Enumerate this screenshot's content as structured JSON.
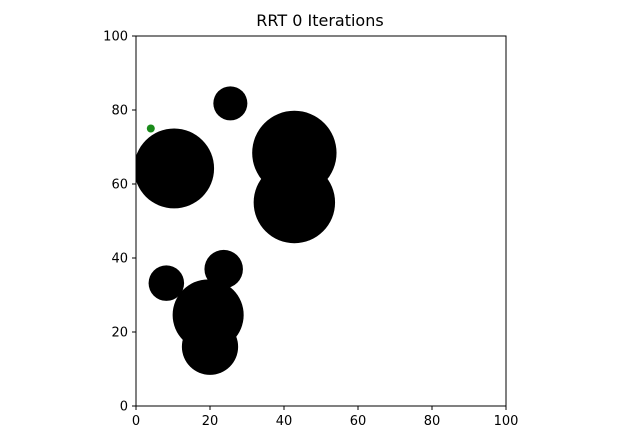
{
  "chart_data": {
    "type": "scatter",
    "title": "RRT 0 Iterations",
    "xlabel": "",
    "ylabel": "",
    "xlim": [
      0,
      100
    ],
    "ylim": [
      0,
      100
    ],
    "x_ticks": [
      "0",
      "20",
      "40",
      "60",
      "80",
      "100"
    ],
    "y_ticks": [
      "0",
      "20",
      "40",
      "60",
      "80",
      "100"
    ],
    "grid": false,
    "obstacles": [
      {
        "x": 25.5,
        "y": 81.8,
        "r": 4.6
      },
      {
        "x": 10.3,
        "y": 64.2,
        "r": 10.8
      },
      {
        "x": 42.8,
        "y": 68.4,
        "r": 11.4
      },
      {
        "x": 42.8,
        "y": 55.0,
        "r": 11.0
      },
      {
        "x": 23.7,
        "y": 37.0,
        "r": 5.2
      },
      {
        "x": 8.2,
        "y": 33.2,
        "r": 4.8
      },
      {
        "x": 19.5,
        "y": 24.6,
        "r": 9.6
      },
      {
        "x": 20.0,
        "y": 16.0,
        "r": 7.6
      }
    ],
    "start_point": {
      "x": 4.0,
      "y": 75.0
    },
    "colors": {
      "obstacle": "#000000",
      "start": "#1a8a1a",
      "axes": "#000000",
      "background": "#ffffff"
    }
  }
}
